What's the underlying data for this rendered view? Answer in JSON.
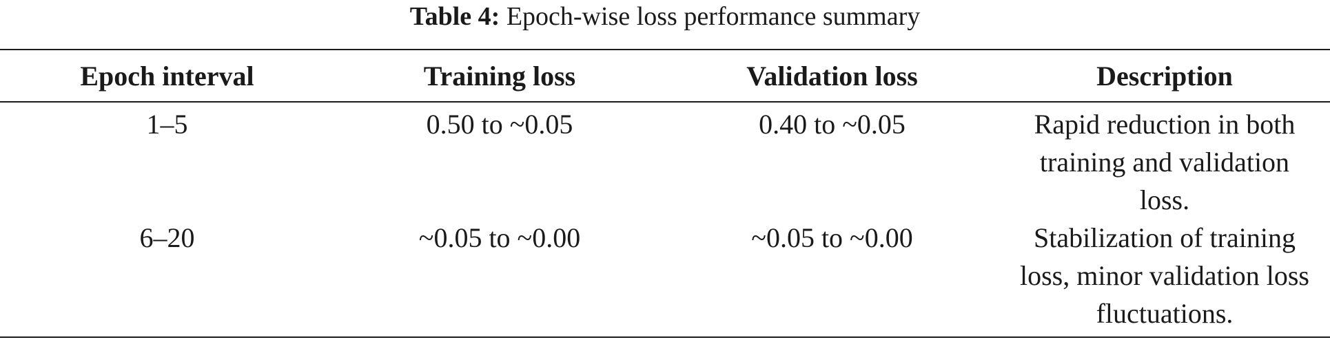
{
  "caption": {
    "label": "Table 4:",
    "text": " Epoch-wise loss performance summary"
  },
  "table": {
    "headers": [
      "Epoch interval",
      "Training loss",
      "Validation loss",
      "Description"
    ],
    "rows": [
      {
        "epoch": "1–5",
        "training": "0.50 to ~0.05",
        "validation": "0.40 to ~0.05",
        "description": "Rapid reduction in both training and validation loss."
      },
      {
        "epoch": "6–20",
        "training": "~0.05 to ~0.00",
        "validation": "~0.05 to ~0.00",
        "description": "Stabilization of training loss, minor validation loss fluctuations."
      }
    ]
  }
}
